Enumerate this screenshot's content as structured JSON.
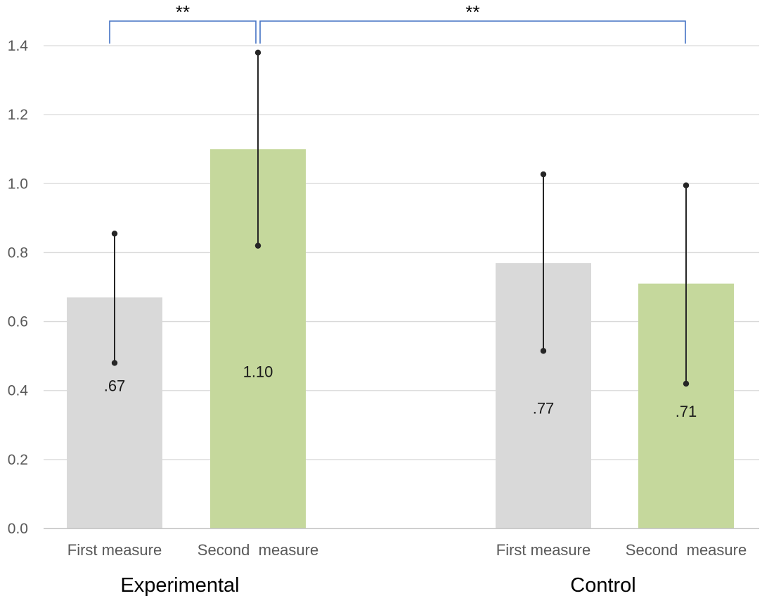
{
  "colors": {
    "first": "#d9d9d9",
    "second": "#c5d89c",
    "grid": "#d9d9d9",
    "axis": "#bfbfbf",
    "error": "#262626",
    "bracket": "#4472c4"
  },
  "chart_data": {
    "type": "bar",
    "title": "",
    "xlabel": "",
    "ylabel": "",
    "ylim": [
      0,
      1.4
    ],
    "yticks": [
      "0.0",
      "0.2",
      "0.4",
      "0.6",
      "0.8",
      "1.0",
      "1.2",
      "1.4"
    ],
    "ytick_values": [
      0,
      0.2,
      0.4,
      0.6,
      0.8,
      1.0,
      1.2,
      1.4
    ],
    "grid": true,
    "groups": [
      {
        "name": "Experimental",
        "bars": [
          {
            "category": "First measure",
            "series": "first",
            "value": 0.67,
            "label": ".67",
            "err_low": 0.48,
            "err_high": 0.855
          },
          {
            "category": "Second  measure",
            "series": "second",
            "value": 1.1,
            "label": "1.10",
            "err_low": 0.82,
            "err_high": 1.38
          }
        ]
      },
      {
        "name": "Control",
        "bars": [
          {
            "category": "First measure",
            "series": "first",
            "value": 0.77,
            "label": ".77",
            "err_low": 0.515,
            "err_high": 1.027
          },
          {
            "category": "Second  measure",
            "series": "second",
            "value": 0.71,
            "label": ".71",
            "err_low": 0.42,
            "err_high": 0.995
          }
        ]
      }
    ],
    "annotations": [
      {
        "text": "**",
        "from_bar": 0,
        "to_bar": 1
      },
      {
        "text": "**",
        "from_bar": 1,
        "to_bar": 3
      }
    ]
  }
}
